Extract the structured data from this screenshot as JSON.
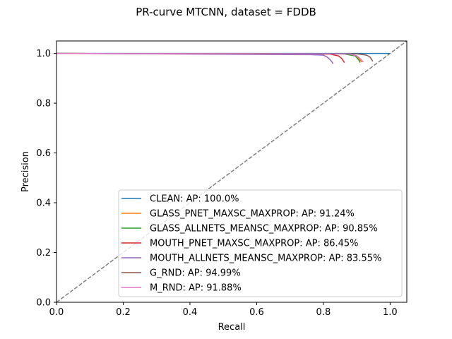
{
  "chart_data": {
    "type": "line",
    "title": "PR-curve MTCNN, dataset = FDDB",
    "xlabel": "Recall",
    "ylabel": "Precision",
    "xlim": [
      0.0,
      1.05
    ],
    "ylim": [
      0.0,
      1.05
    ],
    "xticks": [
      "0.0",
      "0.2",
      "0.4",
      "0.6",
      "0.8",
      "1.0"
    ],
    "yticks": [
      "0.0",
      "0.2",
      "0.4",
      "0.6",
      "0.8",
      "1.0"
    ],
    "grid": false,
    "legend_location": "lower right",
    "diagonal_reference": {
      "x": [
        0.0,
        1.05
      ],
      "y": [
        0.0,
        1.05
      ],
      "color": "#808080",
      "style": "dashed"
    },
    "series": [
      {
        "name": "CLEAN: AP: 100.0%",
        "color": "#1f77b4",
        "x": [
          0.0,
          0.9,
          1.0
        ],
        "y": [
          1.0,
          1.0,
          1.0
        ]
      },
      {
        "name": "GLASS_PNET_MAXSC_MAXPROP: AP: 91.24%",
        "color": "#ff7f0e",
        "x": [
          0.0,
          0.87,
          0.9,
          0.905,
          0.912,
          0.915
        ],
        "y": [
          1.0,
          0.998,
          0.99,
          0.98,
          0.97,
          0.965
        ]
      },
      {
        "name": "GLASS_ALLNETS_MEANSC_MAXPROP: AP: 90.85%",
        "color": "#2ca02c",
        "x": [
          0.0,
          0.86,
          0.895,
          0.902,
          0.908,
          0.91
        ],
        "y": [
          1.0,
          0.998,
          0.99,
          0.98,
          0.97,
          0.963
        ]
      },
      {
        "name": "MOUTH_PNET_MAXSC_MAXPROP: AP: 86.45%",
        "color": "#d62728",
        "x": [
          0.0,
          0.82,
          0.845,
          0.855,
          0.86,
          0.863
        ],
        "y": [
          1.0,
          0.997,
          0.99,
          0.98,
          0.97,
          0.963
        ]
      },
      {
        "name": "MOUTH_ALLNETS_MEANSC_MAXPROP: AP: 83.55%",
        "color": "#9467bd",
        "x": [
          0.0,
          0.76,
          0.8,
          0.812,
          0.82,
          0.826,
          0.829
        ],
        "y": [
          1.0,
          0.995,
          0.993,
          0.985,
          0.975,
          0.965,
          0.958
        ]
      },
      {
        "name": "G_RND: AP: 94.99%",
        "color": "#8c564b",
        "x": [
          0.0,
          0.9,
          0.93,
          0.94,
          0.945,
          0.948
        ],
        "y": [
          1.0,
          0.998,
          0.993,
          0.985,
          0.975,
          0.968
        ]
      },
      {
        "name": "M_RND: AP: 91.88%",
        "color": "#e377c2",
        "x": [
          0.0,
          0.88,
          0.9,
          0.91,
          0.915,
          0.92
        ],
        "y": [
          1.0,
          0.998,
          0.99,
          0.98,
          0.972,
          0.965
        ]
      }
    ]
  }
}
